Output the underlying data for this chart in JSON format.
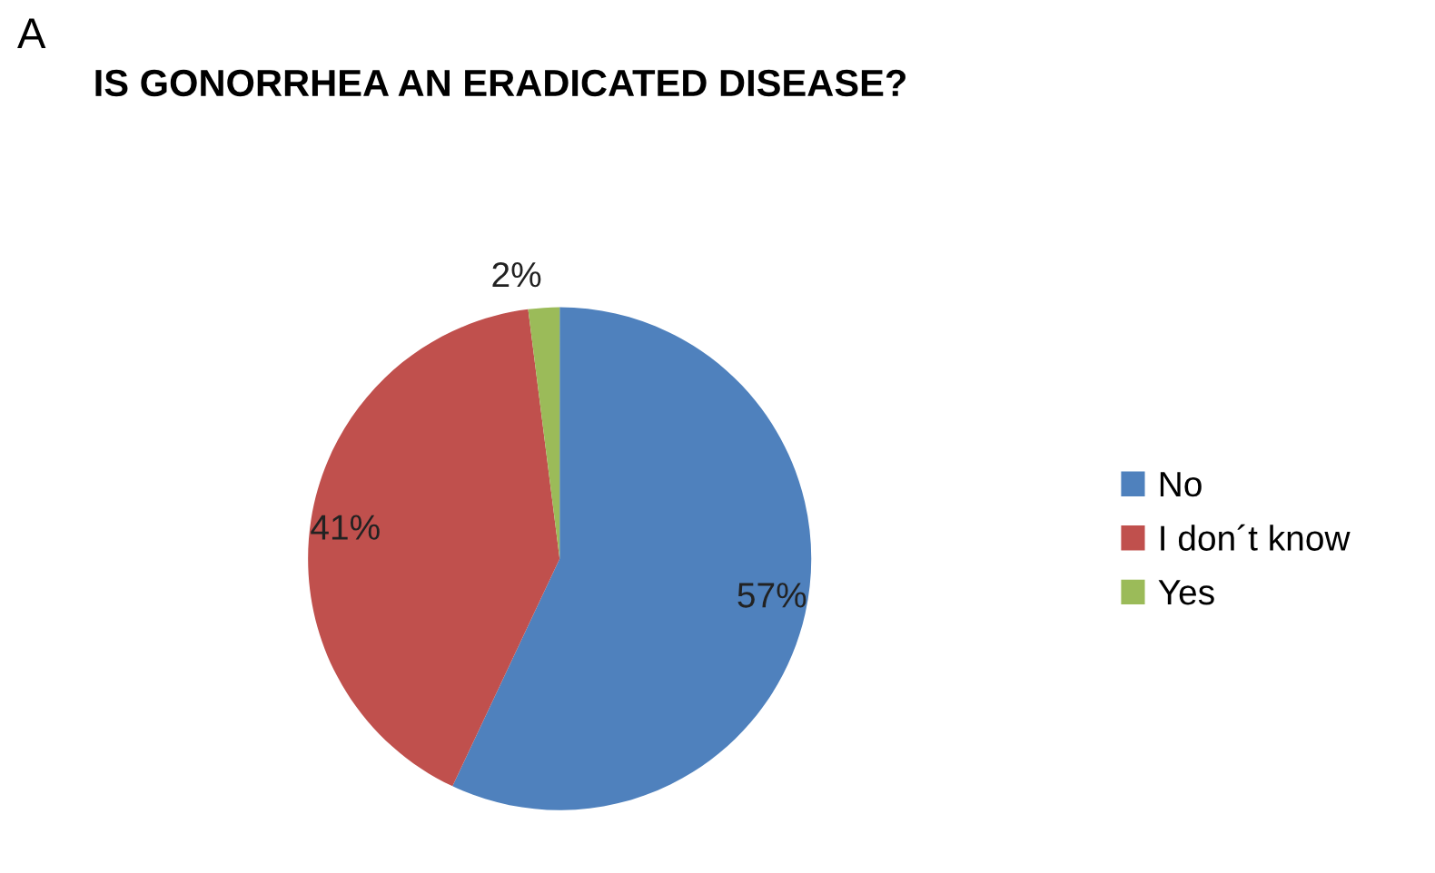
{
  "chart_data": {
    "type": "pie",
    "title": "IS GONORRHEA AN ERADICATED DISEASE?",
    "annotations": [
      "A"
    ],
    "categories": [
      "No",
      "I don´t know",
      "Yes"
    ],
    "values": [
      57,
      41,
      2
    ],
    "value_labels": [
      "57%",
      "41%",
      "2%"
    ],
    "colors": [
      "#4f81bd",
      "#c0504d",
      "#9bbb59"
    ],
    "legend": "right"
  }
}
